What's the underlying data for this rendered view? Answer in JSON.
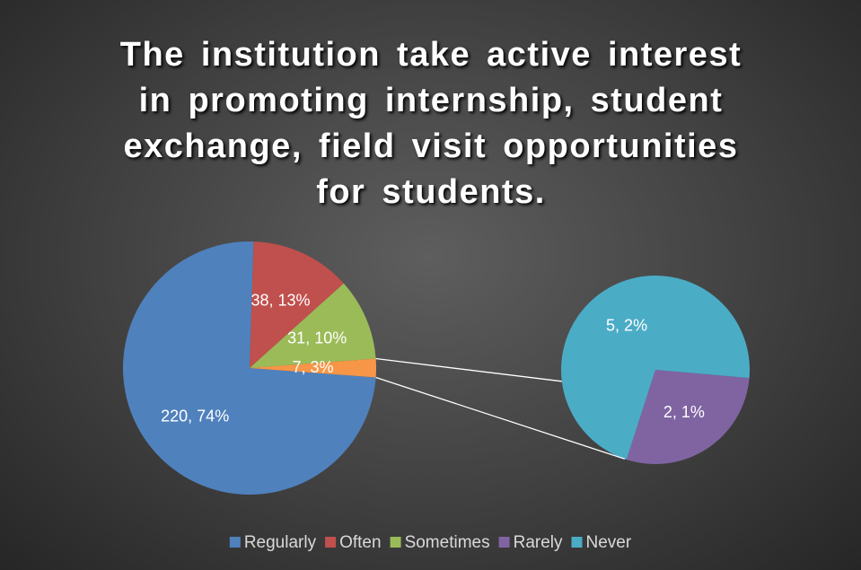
{
  "chart_data": {
    "type": "pie-of-pie",
    "title": "The institution take active interest in promoting internship, student exchange, field visit opportunities for students.",
    "categories": [
      "Regularly",
      "Often",
      "Sometimes",
      "Rarely",
      "Never"
    ],
    "values": [
      220,
      38,
      31,
      2,
      5
    ],
    "value_labels": [
      "220, 74%",
      "38, 13%",
      "31, 10%",
      "2, 1%",
      "5, 2%"
    ],
    "colors": [
      "#4f81bd",
      "#c0504d",
      "#9bbb59",
      "#8064a2",
      "#4bacc6"
    ],
    "other": {
      "value": 7,
      "value_label": "7, 3%",
      "color": "#f79646"
    },
    "legend": "bottom"
  }
}
